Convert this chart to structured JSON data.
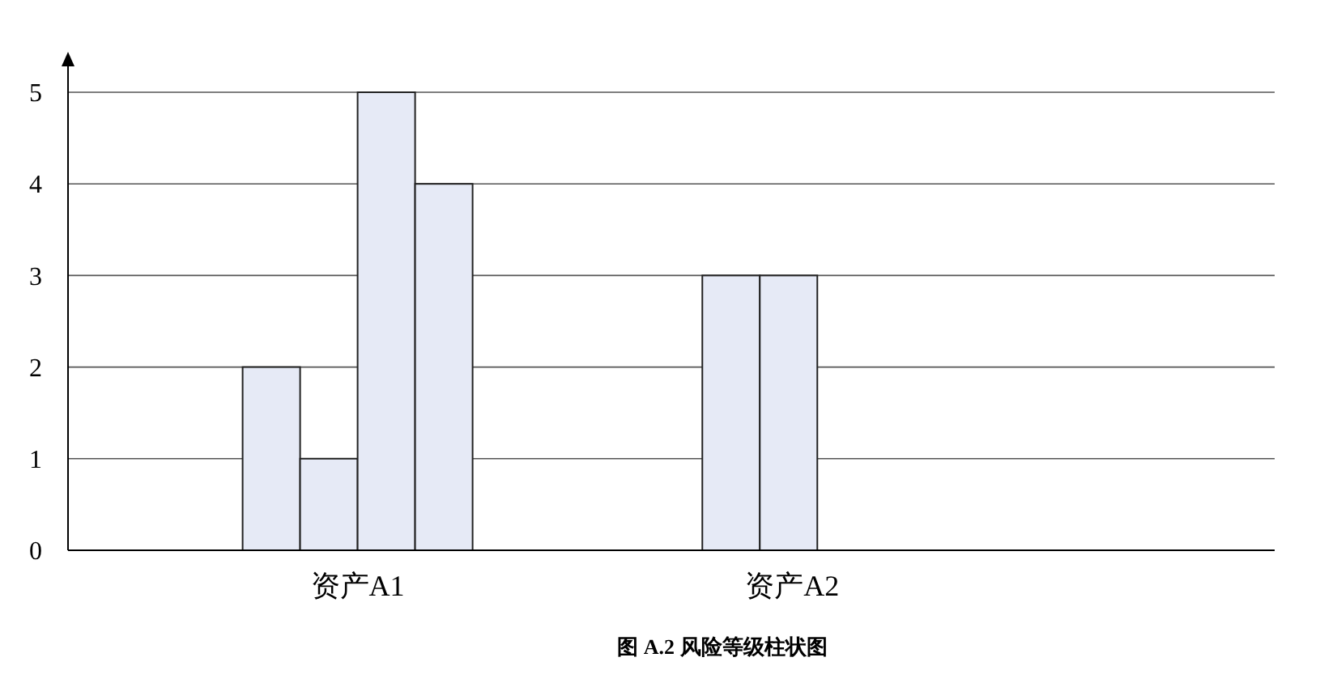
{
  "chart_data": {
    "type": "bar",
    "title": "图 A.2 风险等级柱状图",
    "categories": [
      "资产A1",
      "资产A2"
    ],
    "series": [
      {
        "color": "#e6eaf6",
        "values": [
          2,
          3
        ]
      },
      {
        "color": "#e6eaf6",
        "values": [
          1,
          3
        ]
      },
      {
        "color": "#e6eaf6",
        "values": [
          5,
          null
        ]
      },
      {
        "color": "#e6eaf6",
        "values": [
          4,
          null
        ]
      }
    ],
    "ylim": [
      0,
      5
    ],
    "yticks": [
      0,
      1,
      2,
      3,
      4,
      5
    ],
    "grid": "y"
  }
}
